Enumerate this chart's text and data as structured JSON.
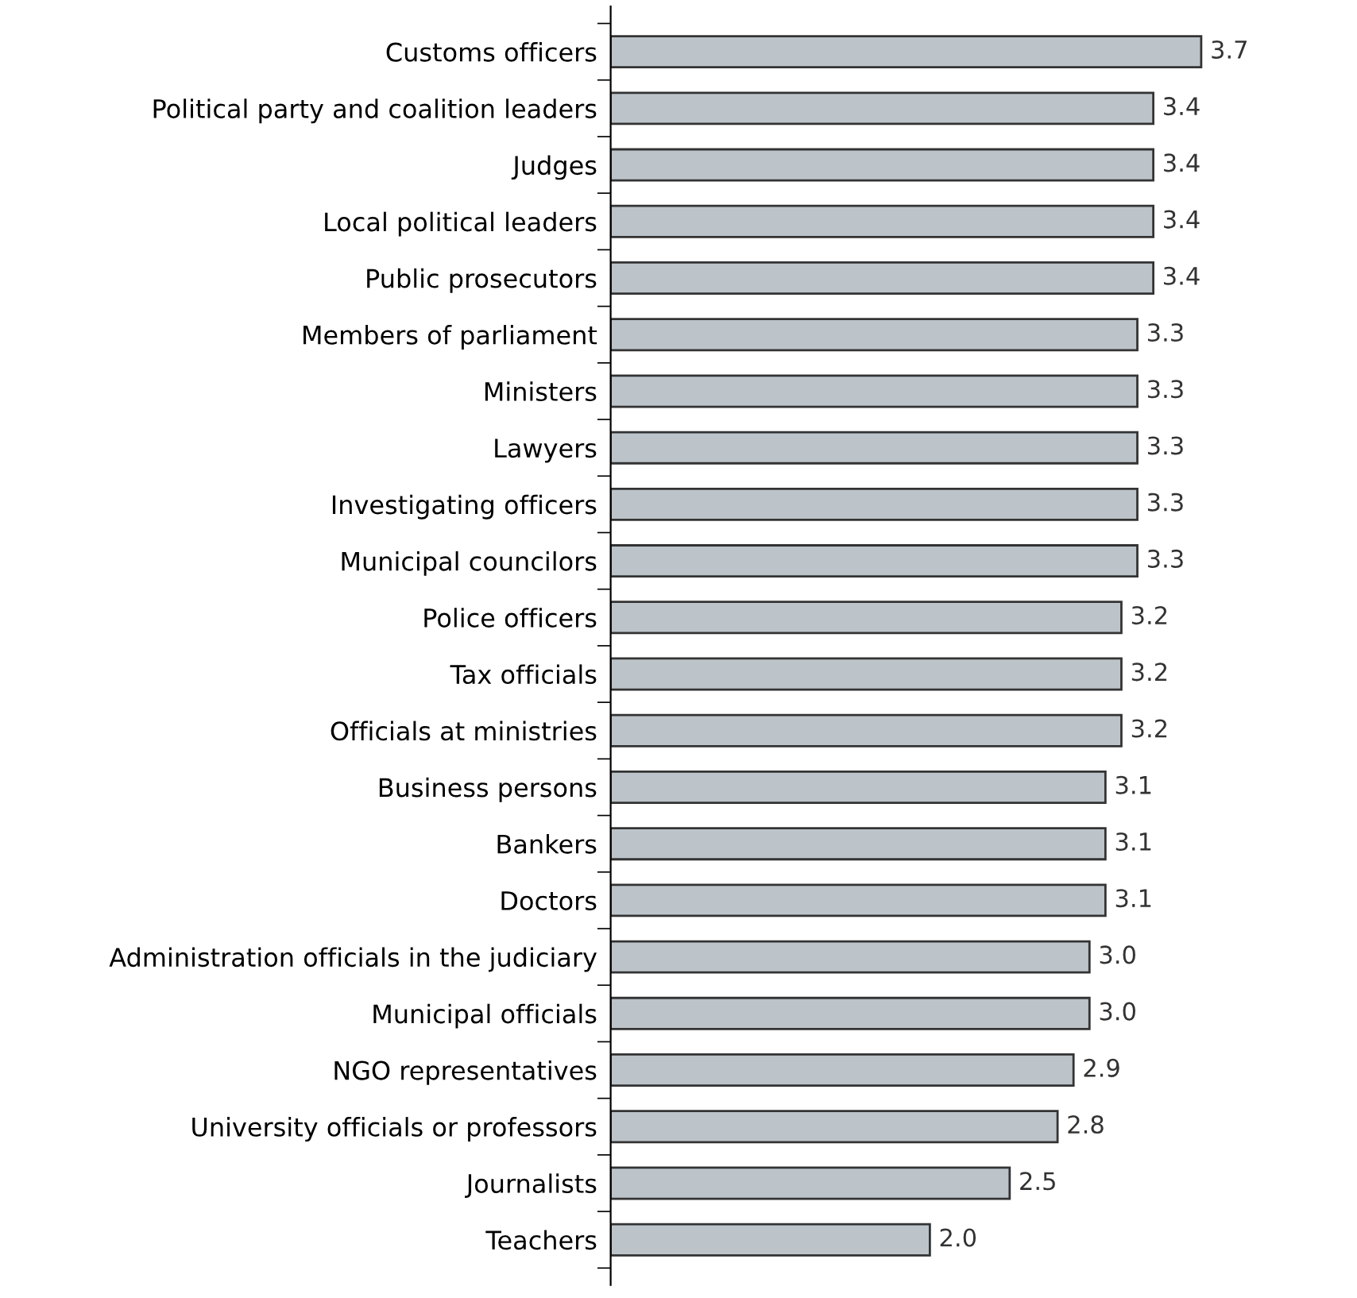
{
  "chart_data": {
    "type": "bar",
    "orientation": "horizontal",
    "categories": [
      "Customs officers",
      "Political party and coalition leaders",
      "Judges",
      "Local political leaders",
      "Public prosecutors",
      "Members of parliament",
      "Ministers",
      "Lawyers",
      "Investigating officers",
      "Municipal councilors",
      "Police officers",
      "Tax officials",
      "Officials at ministries",
      "Business persons",
      "Bankers",
      "Doctors",
      "Administration officials in the judiciary",
      "Municipal officials",
      "NGO representatives",
      "University officials or professors",
      "Journalists",
      "Teachers"
    ],
    "values": [
      3.7,
      3.4,
      3.4,
      3.4,
      3.4,
      3.3,
      3.3,
      3.3,
      3.3,
      3.3,
      3.2,
      3.2,
      3.2,
      3.1,
      3.1,
      3.1,
      3.0,
      3.0,
      2.9,
      2.8,
      2.5,
      2.0
    ],
    "value_labels": [
      "3.7",
      "3.4",
      "3.4",
      "3.4",
      "3.4",
      "3.3",
      "3.3",
      "3.3",
      "3.3",
      "3.3",
      "3.2",
      "3.2",
      "3.2",
      "3.1",
      "3.1",
      "3.1",
      "3.0",
      "3.0",
      "2.9",
      "2.8",
      "2.5",
      "2.0"
    ],
    "color": "#bcc4ca",
    "grid": false,
    "legend": false
  }
}
